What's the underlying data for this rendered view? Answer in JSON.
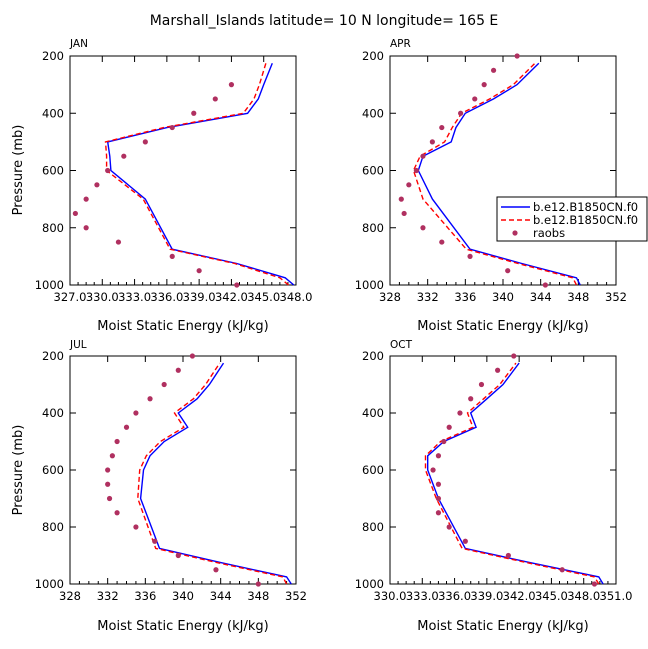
{
  "figure": {
    "title": "Marshall_Islands   latitude=  10 N  longitude=  165 E"
  },
  "legend": {
    "entries": [
      {
        "label": "b.e12.B1850CN.f0",
        "color": "#0000ff",
        "style": "solid"
      },
      {
        "label": "b.e12.B1850CN.f0",
        "color": "#ff0000",
        "style": "dashed"
      },
      {
        "label": "raobs",
        "color": "#b03060",
        "style": "marker"
      }
    ]
  },
  "colors": {
    "model1": "#0000ff",
    "model2": "#ff0000",
    "obs": "#b03060"
  },
  "chart_data": [
    {
      "type": "line",
      "title": "JAN",
      "xlabel": "Moist Static Energy (kJ/kg)",
      "ylabel": "Pressure (mb)",
      "xlim": [
        327.0,
        348.0
      ],
      "ylim": [
        1000,
        200
      ],
      "xticks": [
        "327.0",
        "330.0",
        "333.0",
        "336.0",
        "339.0",
        "342.0",
        "345.0",
        "348.0"
      ],
      "xtick_values": [
        327,
        330,
        333,
        336,
        339,
        342,
        345,
        348
      ],
      "yticks": [
        200,
        400,
        600,
        800,
        1000
      ],
      "series": [
        {
          "name": "b.e12.B1850CN.f0",
          "style": "solid",
          "color": "#0000ff",
          "x": [
            347.8,
            347.0,
            342.5,
            336.5,
            334.0,
            330.8,
            330.7,
            330.5,
            336.0,
            343.5,
            344.5,
            345.0,
            345.8
          ],
          "y": [
            1000,
            975,
            925,
            875,
            700,
            600,
            550,
            500,
            450,
            400,
            350,
            300,
            225
          ]
        },
        {
          "name": "b.e12.B1850CN.f0",
          "style": "dashed",
          "color": "#ff0000",
          "x": [
            347.3,
            346.5,
            342.3,
            336.3,
            333.8,
            330.4,
            330.4,
            330.3,
            335.7,
            343.1,
            344.1,
            344.6,
            345.2
          ],
          "y": [
            1000,
            975,
            925,
            875,
            700,
            600,
            550,
            500,
            450,
            400,
            350,
            300,
            225
          ]
        },
        {
          "name": "raobs",
          "style": "marker",
          "color": "#b03060",
          "x": [
            342.5,
            339.0,
            336.5,
            331.5,
            328.5,
            327.5,
            328.5,
            329.5,
            330.5,
            332.0,
            334.0,
            336.5,
            338.5,
            340.5,
            342.0
          ],
          "y": [
            1000,
            950,
            900,
            850,
            800,
            750,
            700,
            650,
            600,
            550,
            500,
            450,
            400,
            350,
            300
          ]
        }
      ]
    },
    {
      "type": "line",
      "title": "APR",
      "xlabel": "Moist Static Energy (kJ/kg)",
      "ylabel": "",
      "xlim": [
        328,
        352
      ],
      "ylim": [
        1000,
        200
      ],
      "xticks": [
        "328",
        "332",
        "336",
        "340",
        "344",
        "348",
        "352"
      ],
      "xtick_values": [
        328,
        332,
        336,
        340,
        344,
        348,
        352
      ],
      "yticks": [
        200,
        400,
        600,
        800,
        1000
      ],
      "series": [
        {
          "name": "b.e12.B1850CN.f0",
          "style": "solid",
          "color": "#0000ff",
          "x": [
            348.2,
            347.8,
            342.0,
            336.5,
            332.5,
            331.0,
            331.5,
            334.5,
            335.0,
            336.0,
            339.0,
            341.5,
            343.8
          ],
          "y": [
            1000,
            975,
            925,
            875,
            700,
            600,
            550,
            500,
            450,
            400,
            350,
            300,
            225
          ]
        },
        {
          "name": "b.e12.B1850CN.f0",
          "style": "dashed",
          "color": "#ff0000",
          "x": [
            347.8,
            347.4,
            341.6,
            336.1,
            331.5,
            330.5,
            331.2,
            333.8,
            334.6,
            335.6,
            338.6,
            341.1,
            343.4
          ],
          "y": [
            1000,
            975,
            925,
            875,
            700,
            600,
            550,
            500,
            450,
            400,
            350,
            300,
            225
          ]
        },
        {
          "name": "raobs",
          "style": "marker",
          "color": "#b03060",
          "x": [
            344.5,
            340.5,
            336.5,
            333.5,
            331.5,
            329.5,
            329.2,
            330.0,
            330.8,
            331.5,
            332.5,
            333.5,
            335.5,
            337.0,
            338.0,
            339.0,
            341.5
          ],
          "y": [
            1000,
            950,
            900,
            850,
            800,
            750,
            700,
            650,
            600,
            550,
            500,
            450,
            400,
            350,
            300,
            250,
            200
          ]
        }
      ]
    },
    {
      "type": "line",
      "title": "JUL",
      "xlabel": "Moist Static Energy (kJ/kg)",
      "ylabel": "Pressure (mb)",
      "xlim": [
        328,
        352
      ],
      "ylim": [
        1000,
        200
      ],
      "xticks": [
        "328",
        "332",
        "336",
        "340",
        "344",
        "348",
        "352"
      ],
      "xtick_values": [
        328,
        332,
        336,
        340,
        344,
        348,
        352
      ],
      "yticks": [
        200,
        400,
        600,
        800,
        1000
      ],
      "series": [
        {
          "name": "b.e12.B1850CN.f0",
          "style": "solid",
          "color": "#0000ff",
          "x": [
            351.5,
            351.0,
            344.0,
            337.5,
            335.5,
            335.8,
            336.5,
            338.0,
            340.5,
            339.5,
            341.5,
            342.8,
            344.3
          ],
          "y": [
            1000,
            975,
            925,
            875,
            700,
            600,
            550,
            500,
            450,
            400,
            350,
            300,
            225
          ]
        },
        {
          "name": "b.e12.B1850CN.f0",
          "style": "dashed",
          "color": "#ff0000",
          "x": [
            351.0,
            350.6,
            343.6,
            337.1,
            335.2,
            335.4,
            336.1,
            337.6,
            340.1,
            339.1,
            341.1,
            342.4,
            343.9
          ],
          "y": [
            1000,
            975,
            925,
            875,
            700,
            600,
            550,
            500,
            450,
            400,
            350,
            300,
            225
          ]
        },
        {
          "name": "raobs",
          "style": "marker",
          "color": "#b03060",
          "x": [
            348.0,
            343.5,
            339.5,
            337.0,
            335.0,
            333.0,
            332.2,
            332.0,
            332.0,
            332.5,
            333.0,
            334.0,
            335.0,
            336.5,
            338.0,
            339.5,
            341.0
          ],
          "y": [
            1000,
            950,
            900,
            850,
            800,
            750,
            700,
            650,
            600,
            550,
            500,
            450,
            400,
            350,
            300,
            250,
            200
          ]
        }
      ]
    },
    {
      "type": "line",
      "title": "OCT",
      "xlabel": "Moist Static Energy (kJ/kg)",
      "ylabel": "",
      "xlim": [
        330.0,
        351.0
      ],
      "ylim": [
        1000,
        200
      ],
      "xticks": [
        "330.0",
        "333.0",
        "336.0",
        "339.0",
        "342.0",
        "345.0",
        "348.0",
        "351.0"
      ],
      "xtick_values": [
        330,
        333,
        336,
        339,
        342,
        345,
        348,
        351
      ],
      "yticks": [
        200,
        400,
        600,
        800,
        1000
      ],
      "series": [
        {
          "name": "b.e12.B1850CN.f0",
          "style": "solid",
          "color": "#0000ff",
          "x": [
            349.8,
            349.4,
            343.0,
            337.0,
            334.5,
            333.5,
            333.5,
            335.0,
            338.0,
            337.5,
            339.0,
            340.5,
            342.0
          ],
          "y": [
            1000,
            975,
            925,
            875,
            700,
            600,
            550,
            500,
            450,
            400,
            350,
            300,
            225
          ]
        },
        {
          "name": "b.e12.B1850CN.f0",
          "style": "dashed",
          "color": "#ff0000",
          "x": [
            349.4,
            349.0,
            342.7,
            336.7,
            334.3,
            333.3,
            333.3,
            334.7,
            337.7,
            337.2,
            338.7,
            340.2,
            341.7
          ],
          "y": [
            1000,
            975,
            925,
            875,
            700,
            600,
            550,
            500,
            450,
            400,
            350,
            300,
            225
          ]
        },
        {
          "name": "raobs",
          "style": "marker",
          "color": "#b03060",
          "x": [
            349.0,
            346.0,
            341.0,
            337.0,
            335.5,
            334.5,
            334.5,
            334.5,
            334.0,
            334.5,
            335.0,
            335.5,
            336.5,
            337.5,
            338.5,
            340.0,
            341.5
          ],
          "y": [
            1000,
            950,
            900,
            850,
            800,
            750,
            700,
            650,
            600,
            550,
            500,
            450,
            400,
            350,
            300,
            250,
            200
          ]
        }
      ]
    }
  ]
}
